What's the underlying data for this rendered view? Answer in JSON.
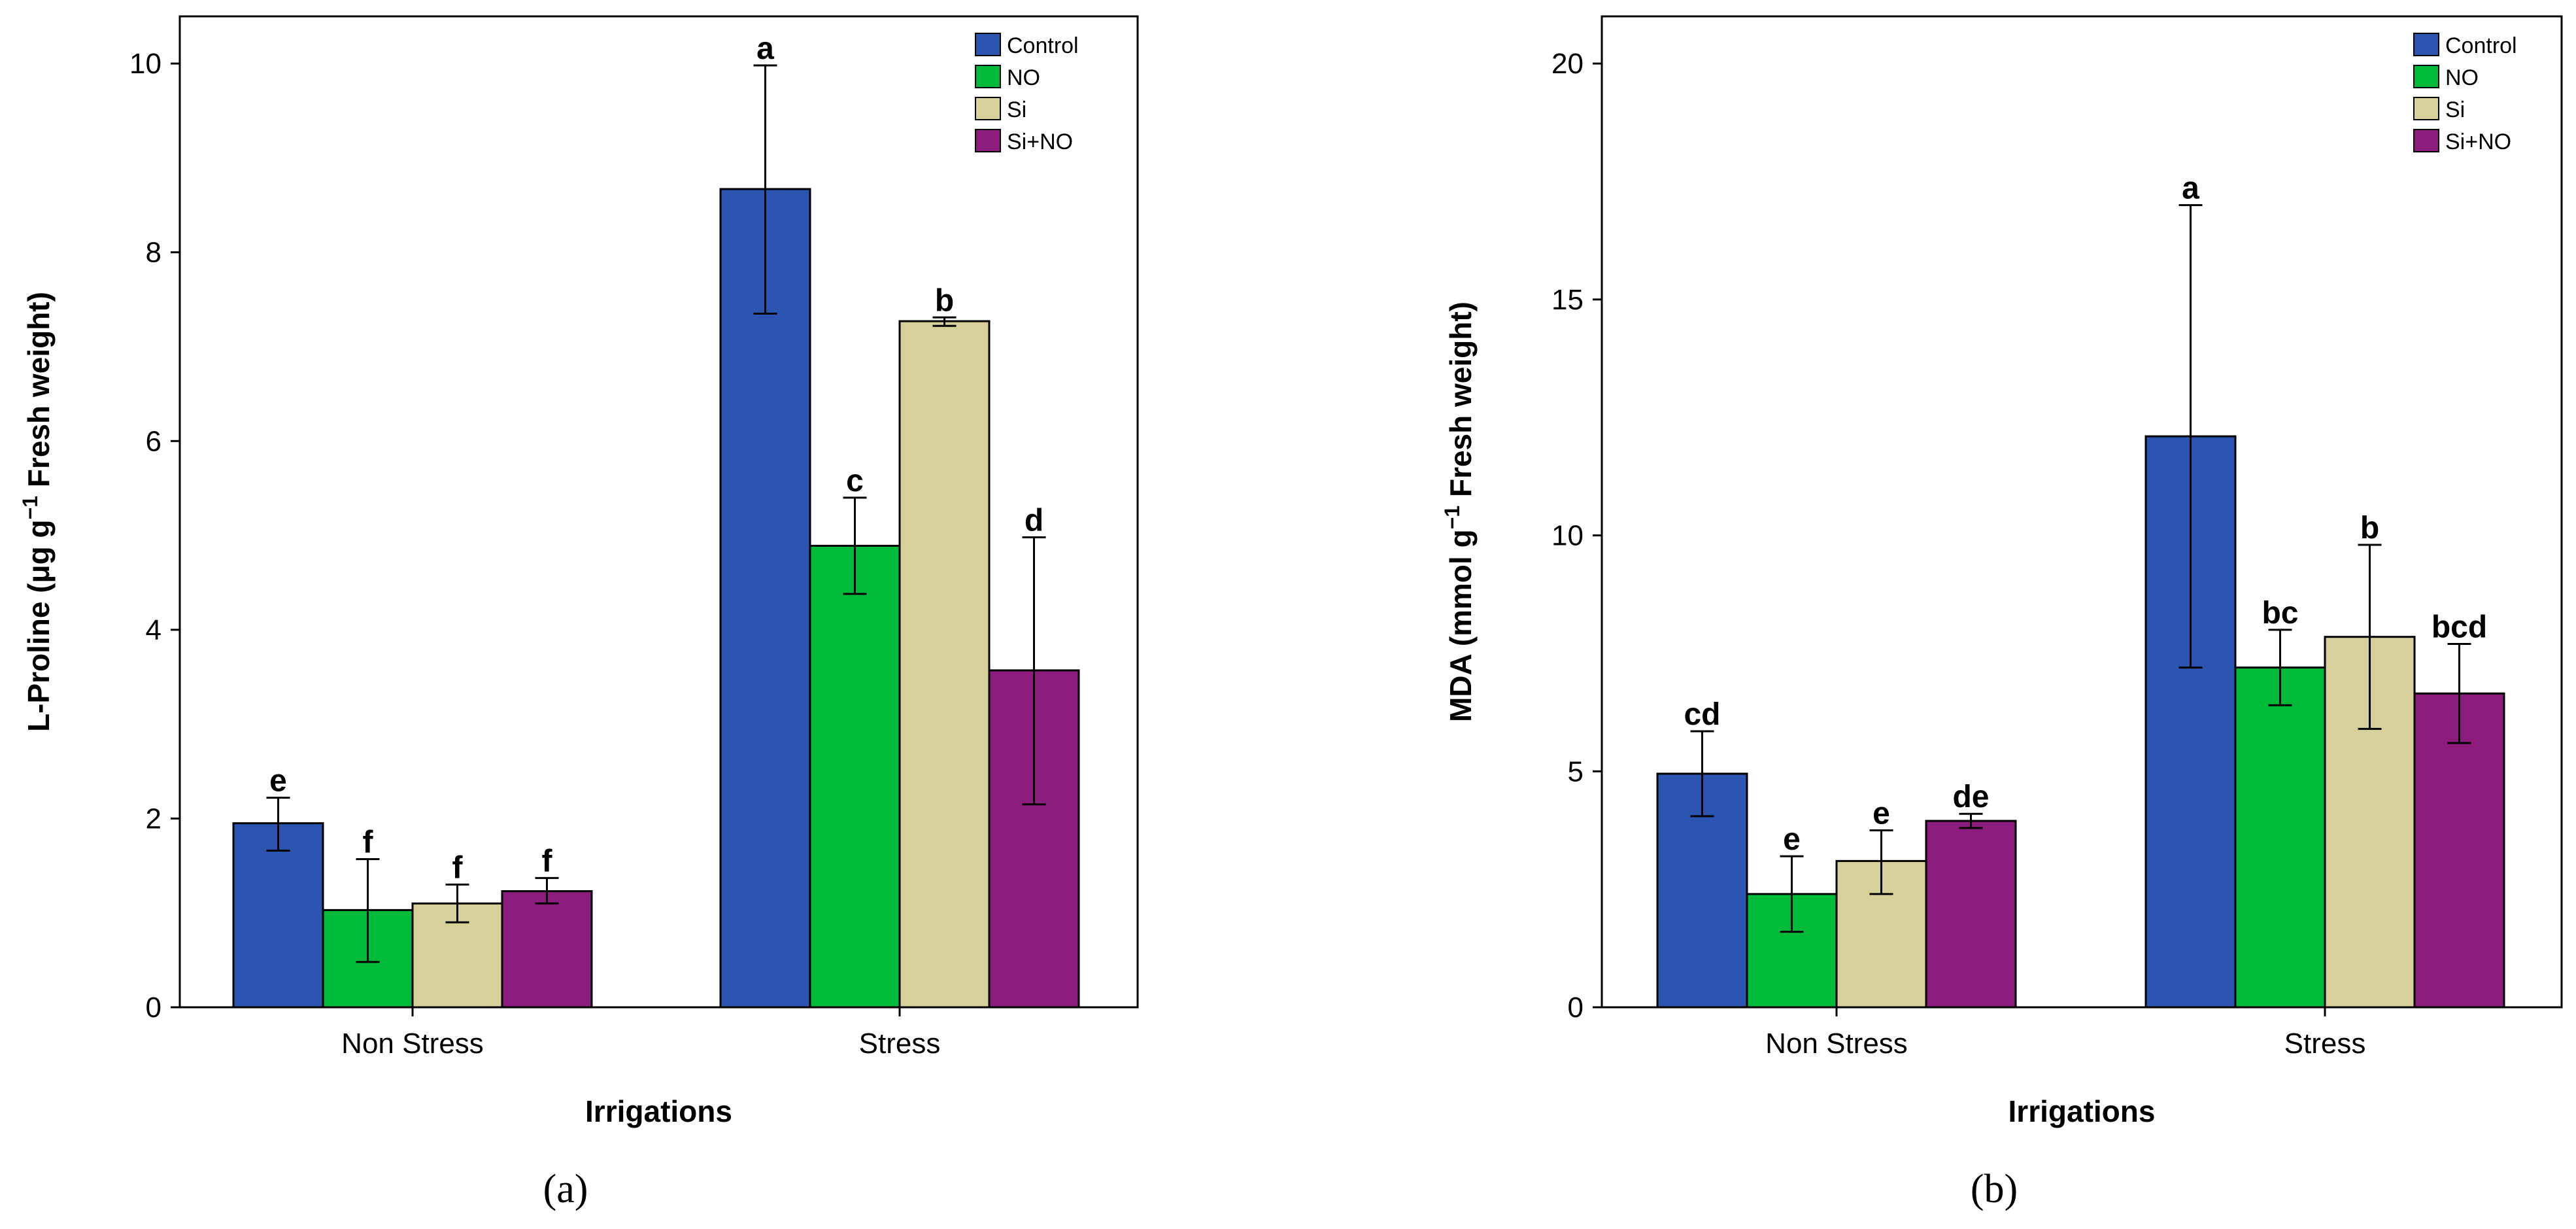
{
  "colors": {
    "Control": "#2b55b0",
    "NO": "#00bb3a",
    "Si": "#d8d09a",
    "Si+NO": "#8c1d7e"
  },
  "chart_data": [
    {
      "type": "bar",
      "panel_label": "(a)",
      "categories": [
        "Non Stress",
        "Stress"
      ],
      "xlabel": "Irrigations",
      "ylabel_main": "L-Proline (μg g",
      "ylabel_sup": "−1",
      "ylabel_tail": " Fresh weight)",
      "ylim": [
        0,
        10.5
      ],
      "yticks": [
        0,
        2,
        4,
        6,
        8,
        10
      ],
      "legend": [
        "Control",
        "NO",
        "Si",
        "Si+NO"
      ],
      "legend_position": "top-right",
      "series": [
        {
          "name": "Control",
          "values": [
            1.95,
            8.67
          ],
          "err_low": [
            1.66,
            7.35
          ],
          "err_high": [
            2.22,
            9.98
          ],
          "letters": [
            "e",
            "a"
          ]
        },
        {
          "name": "NO",
          "values": [
            1.03,
            4.89
          ],
          "err_low": [
            0.48,
            4.38
          ],
          "err_high": [
            1.57,
            5.4
          ],
          "letters": [
            "f",
            "c"
          ]
        },
        {
          "name": "Si",
          "values": [
            1.1,
            7.27
          ],
          "err_low": [
            0.9,
            7.22
          ],
          "err_high": [
            1.3,
            7.31
          ],
          "letters": [
            "f",
            "b"
          ]
        },
        {
          "name": "Si+NO",
          "values": [
            1.23,
            3.57
          ],
          "err_low": [
            1.1,
            2.15
          ],
          "err_high": [
            1.37,
            4.98
          ],
          "letters": [
            "f",
            "d"
          ]
        }
      ]
    },
    {
      "type": "bar",
      "panel_label": "(b)",
      "categories": [
        "Non Stress",
        "Stress"
      ],
      "xlabel": "Irrigations",
      "ylabel_main": "MDA (mmol g",
      "ylabel_sup": "−1",
      "ylabel_tail": " Fresh weight)",
      "ylim": [
        0,
        21
      ],
      "yticks": [
        0,
        5,
        10,
        15,
        20
      ],
      "legend": [
        "Control",
        "NO",
        "Si",
        "Si+NO"
      ],
      "legend_position": "top-right",
      "series": [
        {
          "name": "Control",
          "values": [
            4.95,
            12.1
          ],
          "err_low": [
            4.05,
            7.2
          ],
          "err_high": [
            5.85,
            17.0
          ],
          "letters": [
            "cd",
            "a"
          ]
        },
        {
          "name": "NO",
          "values": [
            2.4,
            7.2
          ],
          "err_low": [
            1.6,
            6.4
          ],
          "err_high": [
            3.2,
            8.0
          ],
          "letters": [
            "e",
            "bc"
          ]
        },
        {
          "name": "Si",
          "values": [
            3.1,
            7.85
          ],
          "err_low": [
            2.4,
            5.9
          ],
          "err_high": [
            3.75,
            9.8
          ],
          "letters": [
            "e",
            "b"
          ]
        },
        {
          "name": "Si+NO",
          "values": [
            3.95,
            6.65
          ],
          "err_low": [
            3.8,
            5.6
          ],
          "err_high": [
            4.1,
            7.7
          ],
          "letters": [
            "de",
            "bcd"
          ]
        }
      ]
    }
  ]
}
